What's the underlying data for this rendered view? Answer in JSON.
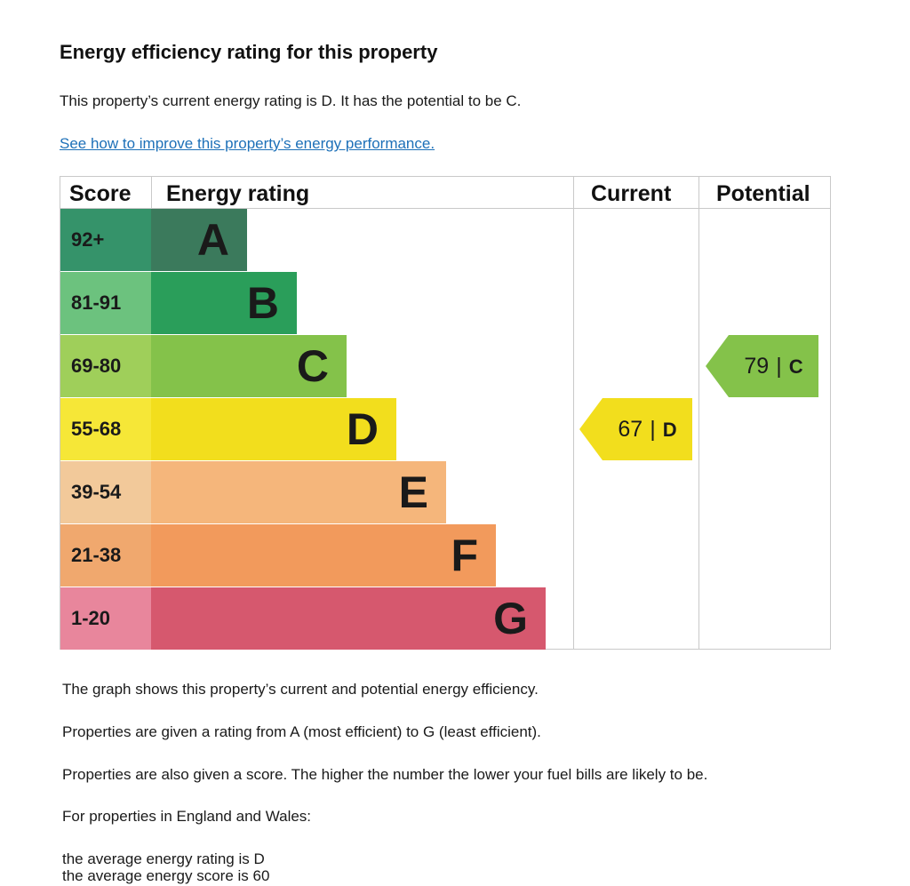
{
  "title": "Energy efficiency rating for this property",
  "intro": "This property’s current energy rating is D. It has the potential to be C.",
  "improve_link": "See how to improve this property’s energy performance.",
  "chart": {
    "headers": {
      "score": "Score",
      "rating": "Energy rating",
      "current": "Current",
      "potential": "Potential"
    },
    "bands": [
      {
        "letter": "A",
        "score": "92+",
        "score_color": "#35936a",
        "bar_color": "#3b7a5c"
      },
      {
        "letter": "B",
        "score": "81-91",
        "score_color": "#6cc27e",
        "bar_color": "#2a9e5a"
      },
      {
        "letter": "C",
        "score": "69-80",
        "score_color": "#9fcf5a",
        "bar_color": "#84c24a"
      },
      {
        "letter": "D",
        "score": "55-68",
        "score_color": "#f6e737",
        "bar_color": "#f2de1d"
      },
      {
        "letter": "E",
        "score": "39-54",
        "score_color": "#f2c99a",
        "bar_color": "#f5b67b"
      },
      {
        "letter": "F",
        "score": "21-38",
        "score_color": "#f0a86e",
        "bar_color": "#f29a5c"
      },
      {
        "letter": "G",
        "score": "1-20",
        "score_color": "#e8869c",
        "bar_color": "#d6586e"
      }
    ],
    "current": {
      "score": "67",
      "sep": "|",
      "rating": "D",
      "color": "#f2de1d"
    },
    "potential": {
      "score": "79",
      "sep": "|",
      "rating": "C",
      "color": "#84c24a"
    }
  },
  "body": {
    "p1": "The graph shows this property’s current and potential energy efficiency.",
    "p2": "Properties are given a rating from A (most efficient) to G (least efficient).",
    "p3": "Properties are also given a score. The higher the number the lower your fuel bills are likely to be.",
    "p4": "For properties in England and Wales:",
    "avg_rating": "the average energy rating is D",
    "avg_score": "the average energy score is 60"
  }
}
